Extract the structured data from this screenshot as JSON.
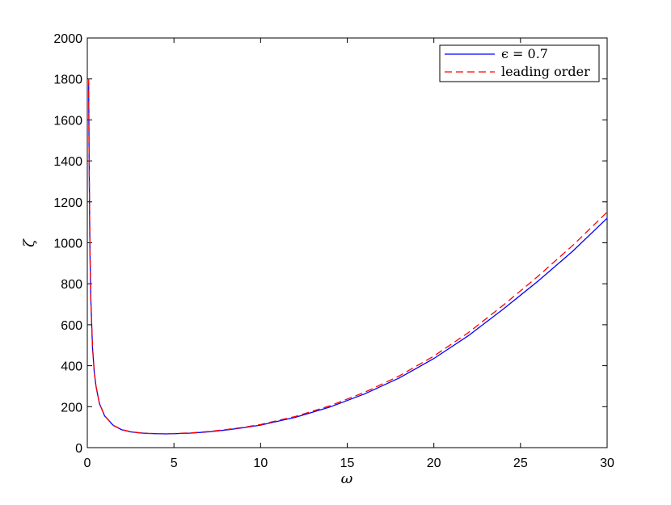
{
  "chart_data": {
    "type": "line",
    "xlabel": "ω",
    "ylabel": "ζ",
    "xlim": [
      0,
      30
    ],
    "ylim": [
      0,
      2000
    ],
    "xticks": [
      0,
      5,
      10,
      15,
      20,
      25,
      30
    ],
    "yticks": [
      0,
      200,
      400,
      600,
      800,
      1000,
      1200,
      1400,
      1600,
      1800,
      2000
    ],
    "xtick_labels": [
      "0",
      "5",
      "10",
      "15",
      "20",
      "25",
      "30"
    ],
    "ytick_labels": [
      "0",
      "200",
      "400",
      "600",
      "800",
      "1000",
      "1200",
      "1400",
      "1600",
      "1800",
      "2000"
    ],
    "grid": false,
    "legend_position": "top-right",
    "series": [
      {
        "name": "ϵ = 0.7",
        "color": "#0000ff",
        "style": "solid",
        "x": [
          0.08,
          0.1,
          0.15,
          0.2,
          0.3,
          0.4,
          0.5,
          0.7,
          1,
          1.5,
          2,
          2.5,
          3,
          3.5,
          4,
          4.5,
          5,
          6,
          7,
          8,
          9,
          10,
          12,
          14,
          16,
          18,
          20,
          22,
          24,
          26,
          28,
          30
        ],
        "y": [
          1780,
          1450,
          970,
          730,
          490,
          370,
          300,
          215,
          155,
          108,
          87,
          77,
          72,
          69,
          68,
          67,
          68,
          71,
          77,
          86,
          97,
          110,
          148,
          198,
          262,
          340,
          435,
          547,
          676,
          812,
          958,
          1120
        ]
      },
      {
        "name": "leading order",
        "color": "#ff0000",
        "style": "dashed",
        "x": [
          0.08,
          0.1,
          0.15,
          0.2,
          0.3,
          0.4,
          0.5,
          0.7,
          1,
          1.5,
          2,
          2.5,
          3,
          3.5,
          4,
          4.5,
          5,
          6,
          7,
          8,
          9,
          10,
          12,
          14,
          16,
          18,
          20,
          22,
          24,
          26,
          28,
          30
        ],
        "y": [
          1800,
          1460,
          975,
          733,
          492,
          372,
          302,
          216,
          156,
          109,
          88,
          78,
          73,
          70,
          69,
          68,
          69,
          72,
          79,
          88,
          99,
          113,
          152,
          204,
          270,
          350,
          447,
          562,
          695,
          836,
          986,
          1150
        ]
      }
    ]
  }
}
